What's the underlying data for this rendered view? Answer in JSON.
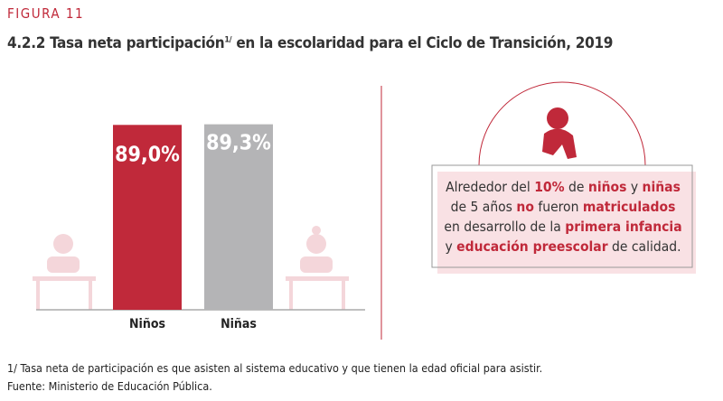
{
  "figure_label": "FIGURA 11",
  "title": {
    "text": "4.2.2 Tasa neta participación",
    "superscript": "1/",
    "text_after": " en la escolaridad para el  Ciclo de Transición, 2019"
  },
  "chart_data": {
    "type": "bar",
    "categories": [
      "Niños",
      "Niñas"
    ],
    "values": [
      89.0,
      89.3
    ],
    "value_labels": [
      "89,0%",
      "89,3%"
    ],
    "colors": [
      "#c0293a",
      "#b4b4b6"
    ]
  },
  "callout": {
    "segments": [
      {
        "text": "Alrededor del ",
        "emphasis": false
      },
      {
        "text": "10%",
        "emphasis": true
      },
      {
        "text": " de ",
        "emphasis": false
      },
      {
        "text": "niños",
        "emphasis": true
      },
      {
        "text": " y ",
        "emphasis": false
      },
      {
        "text": "niñas",
        "emphasis": true
      },
      {
        "text": " de 5 años ",
        "emphasis": false
      },
      {
        "text": "no",
        "emphasis": true
      },
      {
        "text": " fueron ",
        "emphasis": false
      },
      {
        "text": "matriculados",
        "emphasis": true
      },
      {
        "text": " en desarrollo de la ",
        "emphasis": false
      },
      {
        "text": "primera infancia",
        "emphasis": true
      },
      {
        "text": " y ",
        "emphasis": false
      },
      {
        "text": "educación preescolar",
        "emphasis": true
      },
      {
        "text": " de calidad.",
        "emphasis": false
      }
    ]
  },
  "footnotes": [
    "1/ Tasa neta de participación es que asisten al sistema educativo y que tienen la edad oficial para asistir.",
    "Fuente: Ministerio de Educación Pública."
  ]
}
